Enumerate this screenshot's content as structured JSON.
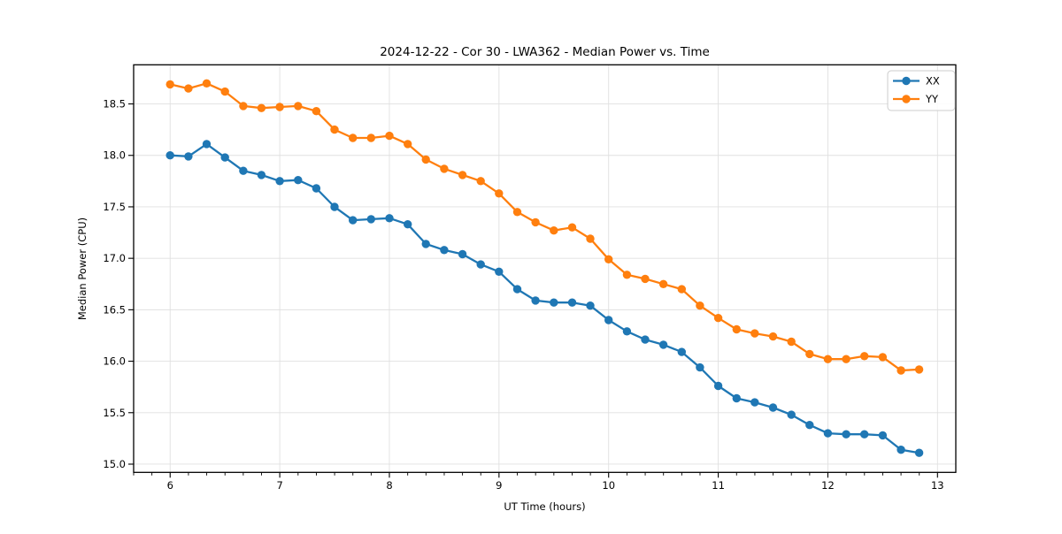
{
  "chart_data": {
    "type": "line",
    "title": "2024-12-22 - Cor 30 - LWA362 - Median Power vs. Time",
    "xlabel": "UT Time (hours)",
    "ylabel": "Median Power (CPU)",
    "xlim": [
      5.667,
      13.167
    ],
    "ylim": [
      14.92,
      18.88
    ],
    "xticks": [
      6,
      7,
      8,
      9,
      10,
      11,
      12,
      13
    ],
    "yticks": [
      15.0,
      15.5,
      16.0,
      16.5,
      17.0,
      17.5,
      18.0,
      18.5
    ],
    "minor_xtick_step": 0.16667,
    "grid": true,
    "grid_color": "#e0e0e0",
    "legend_position": "upper right",
    "x": [
      6.0,
      6.167,
      6.333,
      6.5,
      6.667,
      6.833,
      7.0,
      7.167,
      7.333,
      7.5,
      7.667,
      7.833,
      8.0,
      8.167,
      8.333,
      8.5,
      8.667,
      8.833,
      9.0,
      9.167,
      9.333,
      9.5,
      9.667,
      9.833,
      10.0,
      10.167,
      10.333,
      10.5,
      10.667,
      10.833,
      11.0,
      11.167,
      11.333,
      11.5,
      11.667,
      11.833,
      12.0,
      12.167,
      12.333,
      12.5,
      12.667,
      12.833
    ],
    "series": [
      {
        "name": "XX",
        "color": "#1f77b4",
        "values": [
          18.0,
          17.99,
          18.11,
          17.98,
          17.85,
          17.81,
          17.75,
          17.76,
          17.68,
          17.5,
          17.37,
          17.38,
          17.39,
          17.33,
          17.14,
          17.08,
          17.04,
          16.94,
          16.87,
          16.7,
          16.59,
          16.57,
          16.57,
          16.54,
          16.4,
          16.29,
          16.21,
          16.16,
          16.09,
          15.94,
          15.76,
          15.64,
          15.6,
          15.55,
          15.48,
          15.38,
          15.3,
          15.29,
          15.29,
          15.28,
          15.14,
          15.11
        ]
      },
      {
        "name": "YY",
        "color": "#ff7f0e",
        "values": [
          18.69,
          18.65,
          18.7,
          18.62,
          18.48,
          18.46,
          18.47,
          18.48,
          18.43,
          18.25,
          18.17,
          18.17,
          18.19,
          18.11,
          17.96,
          17.87,
          17.81,
          17.75,
          17.63,
          17.45,
          17.35,
          17.27,
          17.3,
          17.19,
          16.99,
          16.84,
          16.8,
          16.75,
          16.7,
          16.54,
          16.42,
          16.31,
          16.27,
          16.24,
          16.19,
          16.07,
          16.02,
          16.02,
          16.05,
          16.04,
          15.91,
          15.92
        ]
      }
    ]
  }
}
